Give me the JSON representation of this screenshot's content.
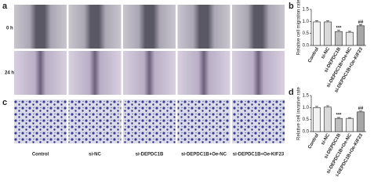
{
  "figure": {
    "panels": [
      "a",
      "b",
      "c",
      "d"
    ],
    "row_labels": [
      "0 h",
      "24 h"
    ],
    "column_labels": [
      "Control",
      "si-NC",
      "si-DEPDC1B",
      "si-DEPDC1B+Oe-NC",
      "si-DEPDC1B+Oe-KIF23"
    ]
  },
  "chart_data": [
    {
      "type": "bar",
      "ylabel": "Relative cell migration rate",
      "categories": [
        "Control",
        "si-NC",
        "si-DEPDC1B",
        "si-DEPDC1B+Oe-NC",
        "si-DEPDC1B+Oe-KIF23"
      ],
      "values": [
        0.98,
        0.98,
        0.58,
        0.55,
        0.82
      ],
      "errors": [
        0.05,
        0.04,
        0.05,
        0.04,
        0.05
      ],
      "significance": [
        null,
        null,
        "***",
        null,
        "##"
      ],
      "colors": [
        "#f2f2f2",
        "#d9d9d9",
        "#bfbfbf",
        "#e6e6e6",
        "#a6a6a6"
      ],
      "ylim": [
        0,
        1.5
      ],
      "yticks": [
        {
          "value": 0,
          "label": "0.0"
        },
        0.5,
        {
          "value": 1,
          "label": "1.0"
        },
        1.5
      ]
    },
    {
      "type": "bar",
      "ylabel": "Relative cell invasive rate",
      "categories": [
        "Control",
        "si-NC",
        "si-DEPDC1B",
        "si-DEPDC1B+Oe-NC",
        "si-DEPDC1B+Oe-KIF23"
      ],
      "values": [
        1.0,
        1.02,
        0.55,
        0.55,
        0.82
      ],
      "errors": [
        0.05,
        0.06,
        0.04,
        0.03,
        0.04
      ],
      "significance": [
        null,
        null,
        "***",
        null,
        "##"
      ],
      "colors": [
        "#f2f2f2",
        "#d9d9d9",
        "#bfbfbf",
        "#e6e6e6",
        "#a6a6a6"
      ],
      "ylim": [
        0,
        1.5
      ],
      "yticks": [
        {
          "value": 0,
          "label": "0.0"
        },
        0.5,
        {
          "value": 1,
          "label": "1.0"
        },
        1.5
      ]
    }
  ]
}
